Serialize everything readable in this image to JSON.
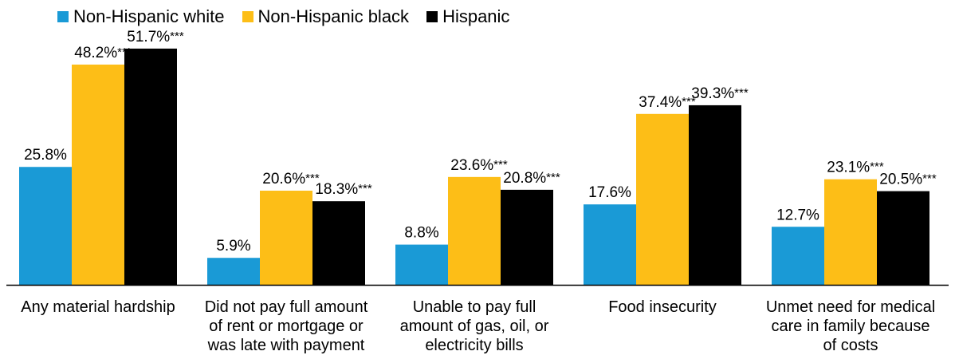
{
  "chart_data": {
    "type": "bar",
    "categories": [
      "Any material hardship",
      "Did not pay full amount of rent or mortgage or was late with payment",
      "Unable to pay full amount of gas, oil, or electricity bills",
      "Food insecurity",
      "Unmet need for medical care in family because of costs"
    ],
    "category_lines": [
      [
        "Any material hardship"
      ],
      [
        "Did not pay full amount",
        "of rent or mortgage or",
        "was late with payment"
      ],
      [
        "Unable to pay full",
        "amount of gas, oil, or",
        "electricity bills"
      ],
      [
        "Food insecurity"
      ],
      [
        "Unmet need for medical",
        "care in family because",
        "of costs"
      ]
    ],
    "series": [
      {
        "name": "Non-Hispanic white",
        "color": "#1a9ad6",
        "values": [
          25.8,
          5.9,
          8.8,
          17.6,
          12.7
        ],
        "labels": [
          "25.8%",
          "5.9%",
          "8.8%",
          "17.6%",
          "12.7%"
        ],
        "stars": [
          "",
          "",
          "",
          "",
          ""
        ]
      },
      {
        "name": "Non-Hispanic black",
        "color": "#fdbe17",
        "values": [
          48.2,
          20.6,
          23.6,
          37.4,
          23.1
        ],
        "labels": [
          "48.2%",
          "20.6%",
          "23.6%",
          "37.4%",
          "23.1%"
        ],
        "stars": [
          "***",
          "***",
          "***",
          "***",
          "***"
        ]
      },
      {
        "name": "Hispanic",
        "color": "#000000",
        "values": [
          51.7,
          18.3,
          20.8,
          39.3,
          20.5
        ],
        "labels": [
          "51.7%",
          "18.3%",
          "20.8%",
          "39.3%",
          "20.5%"
        ],
        "stars": [
          "***",
          "***",
          "***",
          "***",
          "***"
        ]
      }
    ],
    "ylim": [
      0,
      55
    ],
    "legend_position": "top-left",
    "grid": false,
    "axes_visible": false
  }
}
